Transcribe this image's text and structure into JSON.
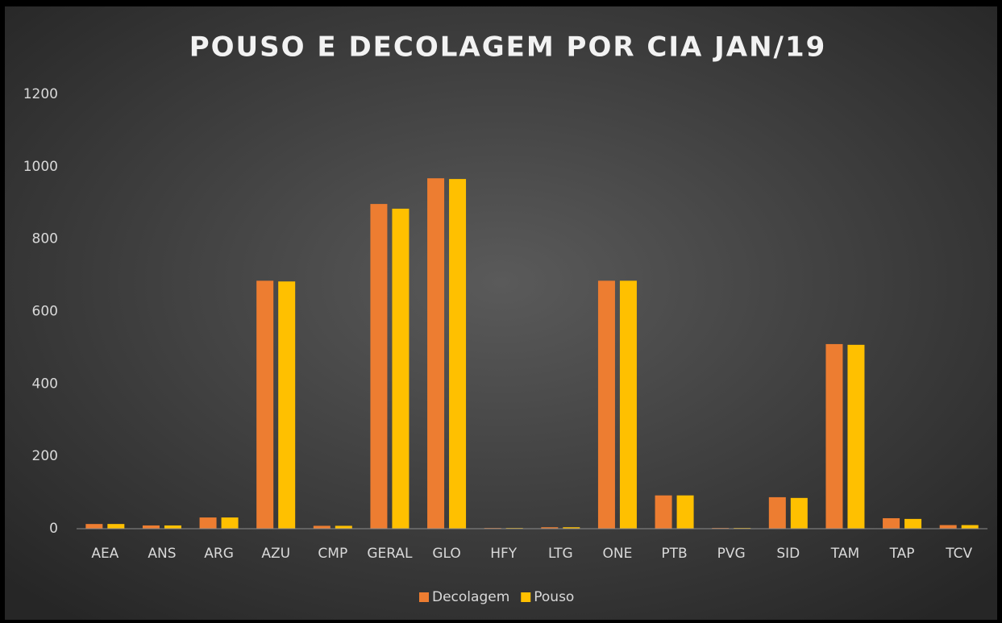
{
  "chart_data": {
    "type": "bar",
    "title": "POUSO E DECOLAGEM POR CIA JAN/19",
    "categories": [
      "AEA",
      "ANS",
      "ARG",
      "AZU",
      "CMP",
      "GERAL",
      "GLO",
      "HFY",
      "LTG",
      "ONE",
      "PTB",
      "PVG",
      "SID",
      "TAM",
      "TAP",
      "TCV"
    ],
    "series": [
      {
        "name": "Decolagem",
        "color": "#ed7d31",
        "values": [
          13,
          9,
          31,
          685,
          8,
          897,
          968,
          2,
          4,
          685,
          92,
          2,
          87,
          510,
          29,
          10
        ]
      },
      {
        "name": "Pouso",
        "color": "#ffc000",
        "values": [
          13,
          9,
          31,
          683,
          8,
          884,
          966,
          2,
          4,
          685,
          92,
          2,
          85,
          508,
          27,
          10
        ]
      }
    ],
    "ylim": [
      0,
      1200
    ],
    "yticks": [
      0,
      200,
      400,
      600,
      800,
      1000,
      1200
    ],
    "grid": false,
    "legend": "bottom"
  }
}
